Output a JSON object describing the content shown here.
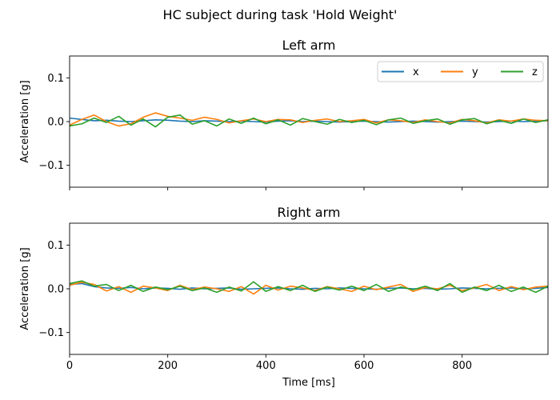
{
  "figure_title": "HC subject during task 'Hold Weight'",
  "colors": {
    "x": "#1f77b4",
    "y": "#ff7f0e",
    "z": "#2ca02c"
  },
  "legend": {
    "placement": "upper-right",
    "ncol": 3,
    "entries": [
      "x",
      "y",
      "z"
    ]
  },
  "chart_data": [
    {
      "type": "line",
      "title": "Left arm",
      "xlabel": "",
      "ylabel": "Acceleration [g]",
      "xlim": [
        0,
        975
      ],
      "ylim": [
        -0.15,
        0.15
      ],
      "xticks": [
        0,
        200,
        400,
        600,
        800
      ],
      "yticks": [
        -0.1,
        0.0,
        0.1
      ],
      "ytick_labels": [
        "−0.1",
        "0.0",
        "0.1"
      ],
      "show_xtick_labels": false,
      "grid": false,
      "x": [
        0,
        25,
        50,
        75,
        100,
        125,
        150,
        175,
        200,
        225,
        250,
        275,
        300,
        325,
        350,
        375,
        400,
        425,
        450,
        475,
        500,
        525,
        550,
        575,
        600,
        625,
        650,
        675,
        700,
        725,
        750,
        775,
        800,
        825,
        850,
        875,
        900,
        925,
        950,
        975
      ],
      "series": [
        {
          "name": "x",
          "values": [
            0.008,
            0.005,
            0.002,
            0.003,
            0.001,
            0.0,
            0.002,
            0.004,
            0.003,
            0.001,
            0.0,
            0.002,
            0.001,
            0.0,
            0.001,
            0.0,
            -0.001,
            0.001,
            0.002,
            0.0,
            0.001,
            0.0,
            -0.001,
            0.0,
            0.001,
            0.0,
            -0.001,
            0.0,
            0.001,
            0.0,
            -0.001,
            0.0,
            0.001,
            0.0,
            -0.001,
            0.0,
            0.001,
            0.0,
            0.001,
            0.002
          ]
        },
        {
          "name": "y",
          "values": [
            -0.008,
            0.005,
            0.015,
            0.0,
            -0.01,
            -0.005,
            0.01,
            0.02,
            0.012,
            0.008,
            0.003,
            0.01,
            0.005,
            -0.003,
            0.002,
            0.006,
            0.0,
            0.005,
            0.004,
            -0.002,
            0.003,
            0.006,
            0.0,
            0.002,
            0.005,
            -0.003,
            0.004,
            0.002,
            -0.002,
            0.004,
            0.0,
            -0.003,
            0.005,
            0.002,
            -0.003,
            0.004,
            0.001,
            0.006,
            0.003,
            0.002
          ]
        },
        {
          "name": "z",
          "values": [
            -0.01,
            -0.005,
            0.008,
            -0.002,
            0.012,
            -0.008,
            0.006,
            -0.012,
            0.01,
            0.015,
            -0.006,
            0.002,
            -0.01,
            0.006,
            -0.004,
            0.008,
            -0.005,
            0.004,
            -0.008,
            0.007,
            0.0,
            -0.006,
            0.005,
            -0.002,
            0.003,
            -0.007,
            0.004,
            0.008,
            -0.004,
            0.002,
            0.006,
            -0.006,
            0.004,
            0.007,
            -0.005,
            0.003,
            -0.004,
            0.006,
            -0.002,
            0.004
          ]
        }
      ]
    },
    {
      "type": "line",
      "title": "Right arm",
      "xlabel": "Time [ms]",
      "ylabel": "Acceleration [g]",
      "xlim": [
        0,
        975
      ],
      "ylim": [
        -0.15,
        0.15
      ],
      "xticks": [
        0,
        200,
        400,
        600,
        800
      ],
      "yticks": [
        -0.1,
        0.0,
        0.1
      ],
      "ytick_labels": [
        "−0.1",
        "0.0",
        "0.1"
      ],
      "show_xtick_labels": true,
      "grid": false,
      "x": [
        0,
        25,
        50,
        75,
        100,
        125,
        150,
        175,
        200,
        225,
        250,
        275,
        300,
        325,
        350,
        375,
        400,
        425,
        450,
        475,
        500,
        525,
        550,
        575,
        600,
        625,
        650,
        675,
        700,
        725,
        750,
        775,
        800,
        825,
        850,
        875,
        900,
        925,
        950,
        975
      ],
      "series": [
        {
          "name": "x",
          "values": [
            0.01,
            0.012,
            0.005,
            0.002,
            0.001,
            0.003,
            0.0,
            0.002,
            0.001,
            -0.001,
            0.002,
            0.0,
            0.001,
            0.002,
            -0.001,
            0.0,
            0.001,
            0.002,
            0.0,
            -0.001,
            0.001,
            0.0,
            0.002,
            0.001,
            0.0,
            -0.001,
            0.001,
            0.002,
            0.0,
            0.001,
            -0.001,
            0.0,
            0.002,
            0.001,
            0.0,
            0.001,
            0.002,
            0.0,
            0.001,
            0.003
          ]
        },
        {
          "name": "y",
          "values": [
            0.008,
            0.015,
            0.01,
            -0.005,
            0.005,
            -0.008,
            0.006,
            0.002,
            -0.004,
            0.008,
            -0.002,
            0.004,
            0.0,
            -0.006,
            0.005,
            -0.012,
            0.008,
            -0.003,
            0.006,
            0.002,
            -0.004,
            0.005,
            0.0,
            -0.006,
            0.006,
            -0.002,
            0.004,
            0.01,
            -0.006,
            0.003,
            0.0,
            0.008,
            -0.004,
            0.002,
            0.01,
            -0.004,
            0.005,
            -0.002,
            0.004,
            0.006
          ]
        },
        {
          "name": "z",
          "values": [
            0.012,
            0.018,
            0.006,
            0.01,
            -0.004,
            0.008,
            -0.006,
            0.004,
            -0.002,
            0.006,
            -0.004,
            0.002,
            -0.008,
            0.004,
            -0.005,
            0.016,
            -0.006,
            0.005,
            -0.004,
            0.008,
            -0.006,
            0.004,
            -0.003,
            0.006,
            -0.004,
            0.01,
            -0.006,
            0.004,
            -0.002,
            0.006,
            -0.004,
            0.012,
            -0.008,
            0.004,
            -0.004,
            0.008,
            -0.006,
            0.004,
            -0.008,
            0.006
          ]
        }
      ]
    }
  ]
}
